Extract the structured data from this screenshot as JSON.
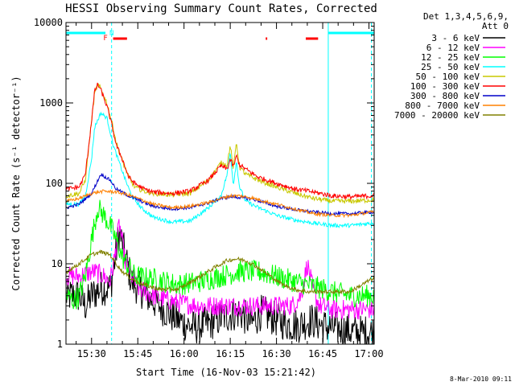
{
  "footer_date": "8-Mar-2010 09:11",
  "chart_data": {
    "type": "line",
    "title": "HESSI Observing Summary Count Rates, Corrected",
    "xlabel": "Start Time (16-Nov-03 15:21:42)",
    "ylabel": "Corrected Count Rate (s⁻¹ detector⁻¹)",
    "y_scale": "log",
    "ylim": [
      1,
      10000
    ],
    "xlim_minutes_after_15_00": [
      21.7,
      121.7
    ],
    "x_ticks": [
      {
        "m": 30,
        "label": "15:30"
      },
      {
        "m": 45,
        "label": "15:45"
      },
      {
        "m": 60,
        "label": "16:00"
      },
      {
        "m": 75,
        "label": "16:15"
      },
      {
        "m": 90,
        "label": "16:30"
      },
      {
        "m": 105,
        "label": "16:45"
      },
      {
        "m": 120,
        "label": "17:00"
      }
    ],
    "y_ticks": [
      {
        "v": 1,
        "label": "1"
      },
      {
        "v": 10,
        "label": "10"
      },
      {
        "v": 100,
        "label": "100"
      },
      {
        "v": 1000,
        "label": "1000"
      },
      {
        "v": 10000,
        "label": "10000"
      }
    ],
    "legend": {
      "header": [
        "Det 1,3,4,5,6,9,",
        "Att 0"
      ],
      "placement": "top-right outside plot"
    },
    "annotations": {
      "night_bars": [
        [
          21.7,
          34.5
        ],
        [
          106.8,
          121.7
        ]
      ],
      "markers": [
        {
          "m": 34.5,
          "label": "F"
        },
        {
          "m": 36.5,
          "label": "N"
        }
      ],
      "saa_bars": [
        [
          37.0,
          41.5
        ],
        [
          86.5,
          87.0
        ],
        [
          99.5,
          103.5
        ]
      ],
      "vertical_lines": [
        {
          "m": 21.7,
          "style": "solid"
        },
        {
          "m": 36.5,
          "style": "dashed"
        },
        {
          "m": 106.8,
          "style": "solid"
        },
        {
          "m": 120.8,
          "style": "dashed"
        }
      ],
      "color": "#00ffff",
      "red": "#ff0000"
    },
    "series": [
      {
        "name": "3 - 6 keV",
        "color": "#000000",
        "noise": 0.45,
        "x": [
          22,
          26,
          28,
          30,
          33,
          36,
          37,
          39,
          43,
          48,
          52,
          58,
          63,
          68,
          73,
          78,
          82,
          85,
          88,
          93,
          97,
          101,
          105,
          108,
          112,
          116,
          121
        ],
        "y": [
          4,
          4,
          3,
          4,
          5,
          5,
          8,
          25,
          6,
          4,
          3,
          2,
          1.6,
          1.8,
          2.2,
          2.5,
          1.8,
          2.5,
          2.2,
          1.8,
          1.7,
          2,
          1.7,
          1.6,
          1.5,
          1.4,
          1.4
        ]
      },
      {
        "name": "6 - 12 keV",
        "color": "#ff00ff",
        "noise": 0.25,
        "x": [
          26,
          28,
          31,
          34,
          36,
          37.5,
          39,
          41,
          45,
          50,
          55,
          60,
          65,
          70,
          75,
          80,
          85,
          90,
          95,
          98,
          100,
          102,
          104,
          108,
          114,
          121
        ],
        "y": [
          7,
          7.5,
          8,
          7,
          6,
          12,
          32,
          10,
          5,
          4,
          3.5,
          3.2,
          3,
          3,
          3,
          3,
          3,
          3,
          3,
          4,
          10,
          4.5,
          3,
          2.7,
          2.7,
          2.7
        ]
      },
      {
        "name": "12 - 25 keV",
        "color": "#00ff00",
        "noise": 0.28,
        "x": [
          22,
          24,
          26,
          28,
          30,
          32,
          34,
          36,
          38,
          40,
          44,
          50,
          58,
          65,
          72,
          78,
          84,
          90,
          96,
          100,
          104,
          108,
          114,
          121
        ],
        "y": [
          4,
          3.5,
          4,
          7,
          20,
          50,
          40,
          30,
          20,
          12,
          7,
          6.5,
          5.5,
          6,
          7,
          8,
          8,
          7,
          6,
          5.5,
          5,
          4.5,
          4,
          4
        ]
      },
      {
        "name": "25 - 50 keV",
        "color": "#00ffff",
        "noise": 0.05,
        "x": [
          22,
          26,
          28,
          30,
          31,
          33,
          35,
          37,
          39,
          41,
          43,
          46,
          50,
          56,
          62,
          68,
          72,
          74,
          75,
          76,
          77,
          78,
          80,
          84,
          90,
          96,
          102,
          108,
          114,
          121
        ],
        "y": [
          55,
          55,
          70,
          200,
          500,
          750,
          650,
          300,
          180,
          110,
          70,
          50,
          38,
          33,
          34,
          50,
          70,
          130,
          250,
          95,
          190,
          90,
          60,
          50,
          40,
          35,
          32,
          30,
          30,
          32
        ]
      },
      {
        "name": "50 - 100 keV",
        "color": "#c8c800",
        "noise": 0.06,
        "x": [
          22,
          26,
          28,
          30,
          31,
          32,
          33,
          34,
          35,
          36,
          37,
          38,
          40,
          42,
          44,
          47,
          50,
          56,
          62,
          68,
          72,
          74,
          75,
          76,
          77,
          78,
          80,
          84,
          90,
          96,
          102,
          108,
          114,
          121
        ],
        "y": [
          70,
          75,
          110,
          600,
          1300,
          1700,
          1500,
          1200,
          1000,
          700,
          500,
          320,
          190,
          120,
          90,
          80,
          75,
          72,
          75,
          110,
          180,
          170,
          300,
          150,
          330,
          160,
          130,
          110,
          90,
          75,
          65,
          60,
          60,
          62
        ]
      },
      {
        "name": "100 - 300 keV",
        "color": "#ff0000",
        "noise": 0.06,
        "x": [
          22,
          26,
          28,
          30,
          31,
          32,
          33,
          34,
          35,
          36,
          37,
          38,
          40,
          42,
          44,
          47,
          50,
          56,
          62,
          68,
          72,
          74,
          75,
          76,
          77,
          78,
          80,
          84,
          90,
          96,
          102,
          108,
          114,
          121
        ],
        "y": [
          85,
          90,
          130,
          600,
          1400,
          1700,
          1450,
          1150,
          900,
          650,
          450,
          300,
          200,
          120,
          100,
          85,
          78,
          75,
          80,
          110,
          165,
          150,
          200,
          160,
          220,
          170,
          150,
          120,
          100,
          85,
          78,
          70,
          68,
          70
        ]
      },
      {
        "name": "300 - 800 keV",
        "color": "#0000c8",
        "noise": 0.04,
        "x": [
          22,
          26,
          30,
          33,
          36,
          38,
          42,
          46,
          50,
          56,
          62,
          68,
          72,
          75,
          78,
          82,
          86,
          90,
          96,
          102,
          108,
          114,
          121
        ],
        "y": [
          50,
          55,
          75,
          130,
          110,
          85,
          70,
          60,
          52,
          48,
          50,
          57,
          65,
          68,
          67,
          64,
          58,
          52,
          47,
          44,
          42,
          42,
          44
        ]
      },
      {
        "name": "800 - 7000 keV",
        "color": "#ff8000",
        "noise": 0.04,
        "x": [
          22,
          26,
          30,
          34,
          38,
          42,
          46,
          50,
          56,
          62,
          68,
          72,
          75,
          78,
          82,
          86,
          90,
          96,
          102,
          108,
          114,
          121
        ],
        "y": [
          60,
          65,
          75,
          80,
          78,
          72,
          63,
          55,
          50,
          52,
          58,
          65,
          70,
          70,
          66,
          60,
          55,
          48,
          42,
          40,
          40,
          44
        ]
      },
      {
        "name": "7000 - 20000 keV",
        "color": "#808000",
        "noise": 0.05,
        "x": [
          22,
          26,
          30,
          33,
          36,
          38,
          40,
          43,
          47,
          52,
          58,
          64,
          70,
          74,
          77,
          80,
          84,
          88,
          92,
          96,
          100,
          104,
          108,
          114,
          121
        ],
        "y": [
          8,
          10,
          13,
          14,
          13,
          10,
          8,
          6.5,
          5.5,
          4.8,
          4.8,
          6.5,
          9,
          11,
          11.5,
          11,
          9,
          7,
          5.5,
          4.8,
          4.5,
          4.5,
          4.5,
          4.5,
          6.5
        ]
      }
    ]
  }
}
